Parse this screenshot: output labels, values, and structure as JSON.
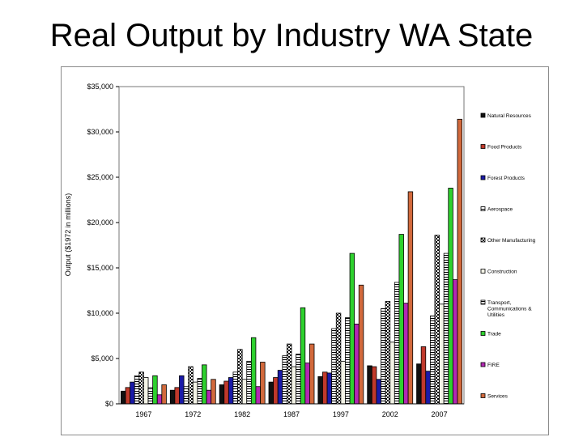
{
  "title": "Real Output by Industry WA State",
  "chart_data": {
    "type": "bar",
    "ylabel": "Output ($1972 in millions)",
    "ylim": [
      0,
      35000
    ],
    "yticks": [
      0,
      5000,
      10000,
      15000,
      20000,
      25000,
      30000,
      35000
    ],
    "ytick_labels": [
      "$0",
      "$5,000",
      "$10,000",
      "$15,000",
      "$20,000",
      "$25,000",
      "$30,000",
      "$35,000"
    ],
    "categories": [
      "1967",
      "1972",
      "1982",
      "1987",
      "1997",
      "2002",
      "2007"
    ],
    "legend_position": "right",
    "series": [
      {
        "name": "Natural Resources",
        "color": "#111111",
        "pattern": "solid",
        "values": [
          1400,
          1500,
          2100,
          2400,
          3000,
          4200,
          4400
        ]
      },
      {
        "name": "Food Products",
        "color": "#c0392b",
        "pattern": "solid",
        "values": [
          1800,
          1800,
          2500,
          2900,
          3500,
          4100,
          6300
        ]
      },
      {
        "name": "Forest Products",
        "color": "#1a1aa8",
        "pattern": "solid",
        "values": [
          2400,
          3100,
          2900,
          3700,
          3400,
          2700,
          3600
        ]
      },
      {
        "name": "Aerospace",
        "color": "#ffffff",
        "pattern": "hatch",
        "values": [
          3100,
          1900,
          3500,
          5300,
          8300,
          10500,
          9700
        ]
      },
      {
        "name": "Other Manufacturing",
        "color": "#ffffff",
        "pattern": "checker",
        "values": [
          3500,
          4100,
          6000,
          6600,
          10000,
          11300,
          18600
        ]
      },
      {
        "name": "Construction",
        "color": "#f3f3e6",
        "pattern": "solid",
        "values": [
          2900,
          2400,
          2700,
          4100,
          4700,
          6800,
          11000
        ]
      },
      {
        "name": "Transport, Communications & Utilities",
        "color": "#ffffff",
        "pattern": "hatch",
        "values": [
          1800,
          2800,
          4700,
          5500,
          9500,
          13400,
          16600
        ]
      },
      {
        "name": "Trade",
        "color": "#2ed12e",
        "pattern": "solid",
        "values": [
          3100,
          4300,
          7300,
          10600,
          16600,
          18700,
          23800
        ]
      },
      {
        "name": "FIRE",
        "color": "#b328b3",
        "pattern": "solid",
        "values": [
          1000,
          1500,
          1900,
          4500,
          8800,
          11100,
          13700
        ]
      },
      {
        "name": "Services",
        "color": "#d2693c",
        "pattern": "solid",
        "values": [
          2100,
          2700,
          4600,
          6600,
          13100,
          23400,
          31400
        ]
      }
    ]
  }
}
